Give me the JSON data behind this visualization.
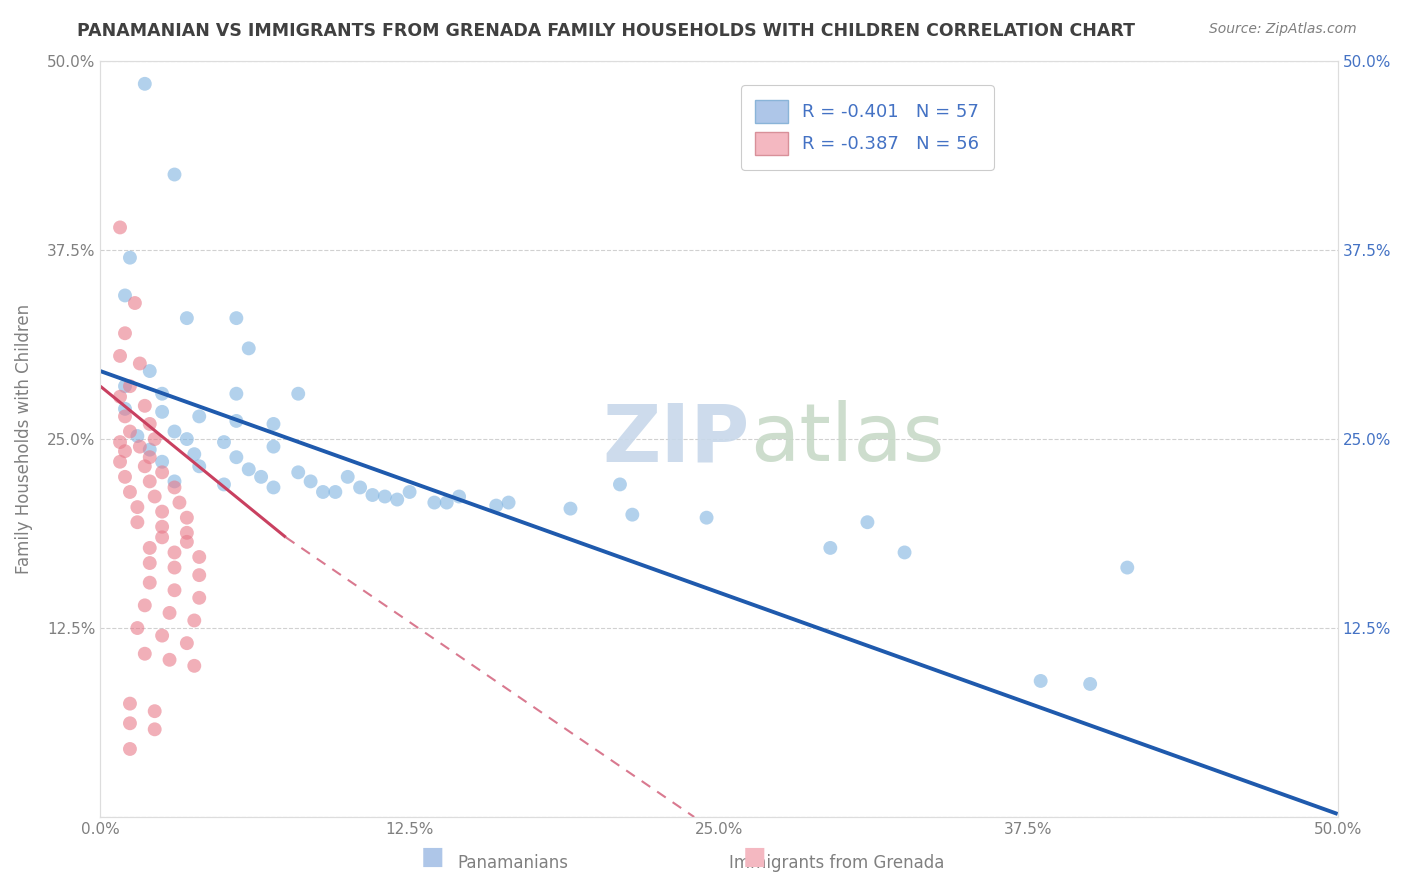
{
  "title": "PANAMANIAN VS IMMIGRANTS FROM GRENADA FAMILY HOUSEHOLDS WITH CHILDREN CORRELATION CHART",
  "source": "Source: ZipAtlas.com",
  "ylabel": "Family Households with Children",
  "xlim": [
    0.0,
    0.5
  ],
  "ylim": [
    0.0,
    0.5
  ],
  "xtick_vals": [
    0.0,
    0.125,
    0.25,
    0.375,
    0.5
  ],
  "xtick_labels": [
    "0.0%",
    "12.5%",
    "25.0%",
    "37.5%",
    "50.0%"
  ],
  "ytick_vals": [
    0.0,
    0.125,
    0.25,
    0.375,
    0.5
  ],
  "ytick_labels_left": [
    "",
    "12.5%",
    "25.0%",
    "37.5%",
    "50.0%"
  ],
  "ytick_labels_right": [
    "",
    "12.5%",
    "25.0%",
    "37.5%",
    "50.0%"
  ],
  "blue_scatter": [
    [
      0.018,
      0.485
    ],
    [
      0.03,
      0.425
    ],
    [
      0.012,
      0.37
    ],
    [
      0.01,
      0.345
    ],
    [
      0.035,
      0.33
    ],
    [
      0.055,
      0.33
    ],
    [
      0.06,
      0.31
    ],
    [
      0.02,
      0.295
    ],
    [
      0.01,
      0.285
    ],
    [
      0.025,
      0.28
    ],
    [
      0.055,
      0.28
    ],
    [
      0.08,
      0.28
    ],
    [
      0.01,
      0.27
    ],
    [
      0.025,
      0.268
    ],
    [
      0.04,
      0.265
    ],
    [
      0.055,
      0.262
    ],
    [
      0.07,
      0.26
    ],
    [
      0.03,
      0.255
    ],
    [
      0.015,
      0.252
    ],
    [
      0.035,
      0.25
    ],
    [
      0.05,
      0.248
    ],
    [
      0.07,
      0.245
    ],
    [
      0.02,
      0.243
    ],
    [
      0.038,
      0.24
    ],
    [
      0.055,
      0.238
    ],
    [
      0.025,
      0.235
    ],
    [
      0.04,
      0.232
    ],
    [
      0.06,
      0.23
    ],
    [
      0.08,
      0.228
    ],
    [
      0.1,
      0.225
    ],
    [
      0.03,
      0.222
    ],
    [
      0.05,
      0.22
    ],
    [
      0.07,
      0.218
    ],
    [
      0.09,
      0.215
    ],
    [
      0.11,
      0.213
    ],
    [
      0.12,
      0.21
    ],
    [
      0.14,
      0.208
    ],
    [
      0.16,
      0.206
    ],
    [
      0.19,
      0.204
    ],
    [
      0.065,
      0.225
    ],
    [
      0.085,
      0.222
    ],
    [
      0.105,
      0.218
    ],
    [
      0.125,
      0.215
    ],
    [
      0.145,
      0.212
    ],
    [
      0.165,
      0.208
    ],
    [
      0.21,
      0.22
    ],
    [
      0.095,
      0.215
    ],
    [
      0.115,
      0.212
    ],
    [
      0.135,
      0.208
    ],
    [
      0.215,
      0.2
    ],
    [
      0.245,
      0.198
    ],
    [
      0.31,
      0.195
    ],
    [
      0.295,
      0.178
    ],
    [
      0.325,
      0.175
    ],
    [
      0.415,
      0.165
    ],
    [
      0.38,
      0.09
    ],
    [
      0.4,
      0.088
    ]
  ],
  "pink_scatter": [
    [
      0.008,
      0.39
    ],
    [
      0.014,
      0.34
    ],
    [
      0.01,
      0.32
    ],
    [
      0.008,
      0.305
    ],
    [
      0.016,
      0.3
    ],
    [
      0.012,
      0.285
    ],
    [
      0.008,
      0.278
    ],
    [
      0.018,
      0.272
    ],
    [
      0.01,
      0.265
    ],
    [
      0.02,
      0.26
    ],
    [
      0.012,
      0.255
    ],
    [
      0.022,
      0.25
    ],
    [
      0.008,
      0.248
    ],
    [
      0.016,
      0.245
    ],
    [
      0.01,
      0.242
    ],
    [
      0.02,
      0.238
    ],
    [
      0.008,
      0.235
    ],
    [
      0.018,
      0.232
    ],
    [
      0.025,
      0.228
    ],
    [
      0.01,
      0.225
    ],
    [
      0.02,
      0.222
    ],
    [
      0.03,
      0.218
    ],
    [
      0.012,
      0.215
    ],
    [
      0.022,
      0.212
    ],
    [
      0.032,
      0.208
    ],
    [
      0.015,
      0.205
    ],
    [
      0.025,
      0.202
    ],
    [
      0.035,
      0.198
    ],
    [
      0.015,
      0.195
    ],
    [
      0.025,
      0.192
    ],
    [
      0.035,
      0.188
    ],
    [
      0.025,
      0.185
    ],
    [
      0.035,
      0.182
    ],
    [
      0.02,
      0.178
    ],
    [
      0.03,
      0.175
    ],
    [
      0.04,
      0.172
    ],
    [
      0.02,
      0.168
    ],
    [
      0.03,
      0.165
    ],
    [
      0.04,
      0.16
    ],
    [
      0.02,
      0.155
    ],
    [
      0.03,
      0.15
    ],
    [
      0.04,
      0.145
    ],
    [
      0.018,
      0.14
    ],
    [
      0.028,
      0.135
    ],
    [
      0.038,
      0.13
    ],
    [
      0.015,
      0.125
    ],
    [
      0.025,
      0.12
    ],
    [
      0.035,
      0.115
    ],
    [
      0.018,
      0.108
    ],
    [
      0.028,
      0.104
    ],
    [
      0.038,
      0.1
    ],
    [
      0.012,
      0.075
    ],
    [
      0.022,
      0.07
    ],
    [
      0.012,
      0.062
    ],
    [
      0.022,
      0.058
    ],
    [
      0.012,
      0.045
    ]
  ],
  "blue_line_solid": [
    [
      0.0,
      0.295
    ],
    [
      0.5,
      0.002
    ]
  ],
  "pink_line_solid": [
    [
      0.0,
      0.285
    ],
    [
      0.075,
      0.185
    ]
  ],
  "pink_line_dash": [
    [
      0.075,
      0.185
    ],
    [
      0.24,
      0.0
    ]
  ],
  "scatter_alpha": 0.6,
  "scatter_size": 100,
  "title_color": "#404040",
  "axis_color": "#808080",
  "grid_color": "#cccccc",
  "blue_color": "#7fb3e0",
  "pink_color": "#e87a8a",
  "line_blue_color": "#1f5aad",
  "line_pink_color": "#c94060",
  "right_axis_color": "#4472c4",
  "legend_blue_fill": "#aec6e8",
  "legend_pink_fill": "#f4b8c1",
  "watermark_zip_color": "#c8d8ea",
  "watermark_atlas_color": "#c8dac8"
}
